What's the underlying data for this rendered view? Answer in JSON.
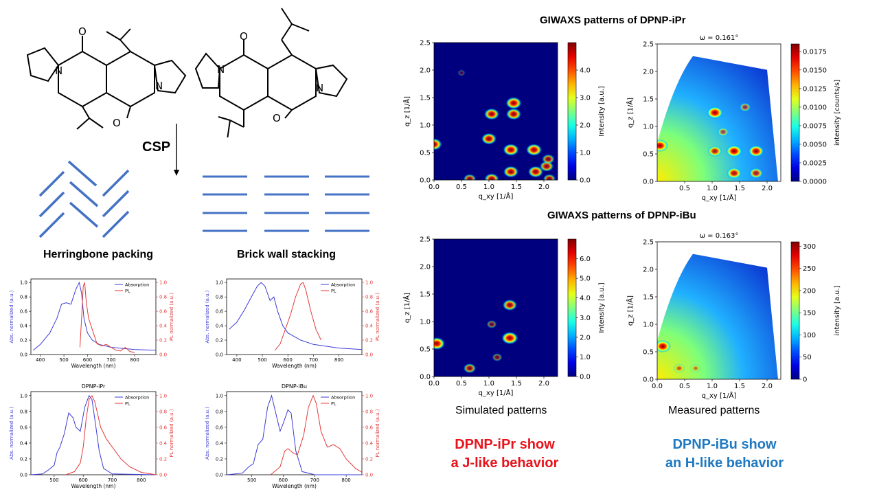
{
  "labels": {
    "csp": "CSP",
    "herringbone": "Herringbone packing",
    "brickwall": "Brick wall stacking",
    "giwaxs_ipr_title": "GIWAXS patterns of DPNP-iPr",
    "giwaxs_ibu_title": "GIWAXS patterns of DPNP-iBu",
    "simulated": "Simulated patterns",
    "measured": "Measured patterns",
    "ipr_conclusion_1": "DPNP-iPr show",
    "ipr_conclusion_2": "a J-like behavior",
    "ibu_conclusion_1": "DPNP-iBu show",
    "ibu_conclusion_2": "an H-like behavior",
    "atom_O": "O",
    "atom_N": "N"
  },
  "colors": {
    "ipr_conclusion": "#e8141b",
    "ibu_conclusion": "#1f79c2",
    "stacking_lines": "#4472c4",
    "absorption": "#3b3bd6",
    "pl": "#e23a3a"
  },
  "chart_data": [
    {
      "id": "spectrum-ipr-film",
      "type": "line",
      "title": "",
      "xlabel": "Wavelength (nm)",
      "ylabel": "Abs. normalized (a.u.)",
      "y2label": "PL normalized (a.u.)",
      "xlim": [
        360,
        890
      ],
      "ylim": [
        0,
        1.05
      ],
      "xticks": [
        400,
        500,
        600,
        700,
        800
      ],
      "yticks": [
        0.0,
        0.2,
        0.4,
        0.6,
        0.8,
        1.0
      ],
      "legend": [
        "Absorption",
        "PL"
      ],
      "legend_position": "top-right",
      "series": [
        {
          "name": "Absorption",
          "x": [
            370,
            400,
            440,
            470,
            490,
            510,
            530,
            550,
            565,
            575,
            585,
            600,
            620,
            650,
            700,
            800,
            890
          ],
          "y": [
            0.06,
            0.14,
            0.3,
            0.5,
            0.7,
            0.72,
            0.7,
            0.9,
            1.0,
            0.85,
            0.5,
            0.3,
            0.2,
            0.14,
            0.1,
            0.07,
            0.06
          ]
        },
        {
          "name": "PL",
          "x": [
            568,
            575,
            582,
            588,
            595,
            605,
            620,
            640,
            660,
            680,
            700,
            720,
            740,
            760,
            780,
            800
          ],
          "y": [
            0.1,
            0.5,
            0.95,
            1.0,
            0.72,
            0.5,
            0.35,
            0.15,
            0.12,
            0.14,
            0.1,
            0.06,
            0.05,
            0.1,
            0.04,
            0.03
          ]
        }
      ]
    },
    {
      "id": "spectrum-ibu-film",
      "type": "line",
      "title": "",
      "xlabel": "Wavelength (nm)",
      "ylabel": "Abs. normalized (a.u.)",
      "y2label": "PL normalized (a.u.)",
      "xlim": [
        360,
        890
      ],
      "ylim": [
        0,
        1.05
      ],
      "xticks": [
        400,
        500,
        600,
        700,
        800
      ],
      "yticks": [
        0.0,
        0.2,
        0.4,
        0.6,
        0.8,
        1.0
      ],
      "legend": [
        "Absorption",
        "PL"
      ],
      "legend_position": "top-right",
      "series": [
        {
          "name": "Absorption",
          "x": [
            370,
            400,
            430,
            460,
            480,
            495,
            510,
            530,
            545,
            560,
            580,
            600,
            650,
            700,
            800,
            890
          ],
          "y": [
            0.35,
            0.45,
            0.62,
            0.82,
            0.95,
            1.0,
            0.95,
            0.75,
            0.8,
            0.6,
            0.4,
            0.3,
            0.2,
            0.14,
            0.09,
            0.07
          ]
        },
        {
          "name": "PL",
          "x": [
            550,
            570,
            590,
            610,
            630,
            650,
            660,
            670,
            690,
            710,
            730
          ],
          "y": [
            0.06,
            0.15,
            0.35,
            0.55,
            0.8,
            0.98,
            1.0,
            0.9,
            0.6,
            0.35,
            0.2
          ]
        }
      ]
    },
    {
      "id": "spectrum-ipr-solution",
      "type": "line",
      "title": "DPNP-iPr",
      "xlabel": "Wavelength (nm)",
      "ylabel": "Abs. normalized (a.u.)",
      "y2label": "PL normalized (a.u.)",
      "xlim": [
        420,
        850
      ],
      "ylim": [
        0,
        1.05
      ],
      "xticks": [
        500,
        600,
        700,
        800
      ],
      "yticks": [
        0.0,
        0.2,
        0.4,
        0.6,
        0.8,
        1.0
      ],
      "legend": [
        "Absorption",
        "PL"
      ],
      "legend_position": "top-right",
      "series": [
        {
          "name": "Absorption",
          "x": [
            420,
            460,
            480,
            500,
            510,
            520,
            535,
            550,
            565,
            575,
            590,
            605,
            620,
            630,
            640,
            655,
            670,
            700,
            850
          ],
          "y": [
            0.0,
            0.01,
            0.06,
            0.12,
            0.28,
            0.35,
            0.52,
            0.78,
            0.72,
            0.6,
            0.55,
            0.85,
            1.0,
            0.95,
            0.7,
            0.3,
            0.08,
            0.01,
            0.0
          ]
        },
        {
          "name": "PL",
          "x": [
            540,
            570,
            590,
            600,
            610,
            620,
            630,
            640,
            660,
            680,
            700,
            730,
            760,
            800,
            850
          ],
          "y": [
            0.0,
            0.04,
            0.15,
            0.35,
            0.7,
            0.95,
            1.0,
            0.92,
            0.6,
            0.45,
            0.35,
            0.2,
            0.1,
            0.03,
            0.0
          ]
        }
      ]
    },
    {
      "id": "spectrum-ibu-solution",
      "type": "line",
      "title": "DPNP-iBu",
      "xlabel": "Wavelength (nm)",
      "ylabel": "Abs. normalized (a.u.)",
      "y2label": "PL normalized (a.u.)",
      "xlim": [
        420,
        850
      ],
      "ylim": [
        0,
        1.05
      ],
      "xticks": [
        500,
        600,
        700,
        800
      ],
      "yticks": [
        0.0,
        0.2,
        0.4,
        0.6,
        0.8,
        1.0
      ],
      "legend": [
        "Absorption",
        "PL"
      ],
      "legend_position": "top-right",
      "series": [
        {
          "name": "Absorption",
          "x": [
            420,
            470,
            490,
            505,
            520,
            535,
            550,
            563,
            575,
            590,
            600,
            615,
            625,
            640,
            660,
            700,
            850
          ],
          "y": [
            0.0,
            0.02,
            0.1,
            0.14,
            0.38,
            0.45,
            0.85,
            1.0,
            0.8,
            0.55,
            0.65,
            0.82,
            0.78,
            0.3,
            0.04,
            0.0,
            0.0
          ]
        },
        {
          "name": "PL",
          "x": [
            560,
            590,
            605,
            615,
            630,
            645,
            665,
            680,
            695,
            705,
            720,
            740,
            760,
            780,
            800,
            830,
            850
          ],
          "y": [
            0.0,
            0.1,
            0.3,
            0.33,
            0.28,
            0.25,
            0.5,
            0.85,
            1.0,
            0.9,
            0.55,
            0.35,
            0.38,
            0.33,
            0.2,
            0.08,
            0.03
          ]
        }
      ]
    },
    {
      "id": "giwaxs-ipr-simulated",
      "type": "heatmap",
      "title": "",
      "xlabel": "q_xy [1/Å]",
      "ylabel": "q_z [1/Å]",
      "colorbar_label": "Intensity [a.u.]",
      "xlim": [
        0,
        2.25
      ],
      "ylim": [
        0,
        2.5
      ],
      "xticks": [
        "0.0",
        "0.5",
        "1.0",
        "1.5",
        "2.0"
      ],
      "yticks": [
        "0.0",
        "0.5",
        "1.0",
        "1.5",
        "2.0",
        "2.5"
      ],
      "colorbar_ticks": [
        "0.0",
        "1.0",
        "2.0",
        "3.0",
        "4.0"
      ],
      "colorbar_max": 5.0,
      "peaks": [
        {
          "q": [
            0.0,
            0.65
          ],
          "i": 0.95
        },
        {
          "q": [
            1.0,
            0.75
          ],
          "i": 0.9
        },
        {
          "q": [
            1.05,
            1.2
          ],
          "i": 0.9
        },
        {
          "q": [
            1.45,
            1.4
          ],
          "i": 0.95
        },
        {
          "q": [
            1.45,
            1.2
          ],
          "i": 0.9
        },
        {
          "q": [
            1.4,
            0.55
          ],
          "i": 0.95
        },
        {
          "q": [
            1.82,
            0.55
          ],
          "i": 0.95
        },
        {
          "q": [
            1.4,
            0.15
          ],
          "i": 0.9
        },
        {
          "q": [
            1.85,
            0.15
          ],
          "i": 0.9
        },
        {
          "q": [
            2.05,
            0.25
          ],
          "i": 0.8
        },
        {
          "q": [
            2.08,
            0.38
          ],
          "i": 0.7
        },
        {
          "q": [
            1.05,
            0.02
          ],
          "i": 0.85
        },
        {
          "q": [
            0.65,
            0.02
          ],
          "i": 0.7
        },
        {
          "q": [
            0.5,
            1.95
          ],
          "i": 0.3
        },
        {
          "q": [
            2.1,
            0.02
          ],
          "i": 0.7
        }
      ]
    },
    {
      "id": "giwaxs-ipr-measured",
      "type": "heatmap",
      "title": "ω = 0.161°",
      "xlabel": "q_xy [1/Å]",
      "ylabel": "q_z [1/Å]",
      "colorbar_label": "intensity [counts/s]",
      "xlim": [
        0,
        2.25
      ],
      "ylim": [
        0,
        2.5
      ],
      "xticks": [
        "0.5",
        "1.0",
        "1.5",
        "2.0"
      ],
      "yticks": [
        "0.0",
        "0.5",
        "1.0",
        "1.5",
        "2.0",
        "2.5"
      ],
      "colorbar_ticks": [
        "0.0000",
        "0.0025",
        "0.0050",
        "0.0075",
        "0.0100",
        "0.0125",
        "0.0150",
        "0.0175"
      ],
      "colorbar_max": 0.0185,
      "peaks": [
        {
          "q": [
            0.05,
            0.65
          ],
          "i": 1.0
        },
        {
          "q": [
            1.05,
            1.25
          ],
          "i": 1.0
        },
        {
          "q": [
            1.05,
            0.55
          ],
          "i": 0.85
        },
        {
          "q": [
            1.4,
            0.55
          ],
          "i": 1.0
        },
        {
          "q": [
            1.8,
            0.55
          ],
          "i": 0.95
        },
        {
          "q": [
            1.4,
            0.15
          ],
          "i": 0.9
        },
        {
          "q": [
            1.8,
            0.15
          ],
          "i": 0.8
        },
        {
          "q": [
            1.6,
            1.35
          ],
          "i": 0.6
        },
        {
          "q": [
            1.2,
            0.9
          ],
          "i": 0.6
        }
      ]
    },
    {
      "id": "giwaxs-ibu-simulated",
      "type": "heatmap",
      "title": "",
      "xlabel": "q_xy [1/Å]",
      "ylabel": "q_z [1/Å]",
      "colorbar_label": "Intensity [a.u.]",
      "xlim": [
        0,
        2.25
      ],
      "ylim": [
        0,
        2.5
      ],
      "xticks": [
        "0.0",
        "0.5",
        "1.0",
        "1.5",
        "2.0"
      ],
      "yticks": [
        "0.0",
        "0.5",
        "1.0",
        "1.5",
        "2.0",
        "2.5"
      ],
      "colorbar_ticks": [
        "0.0",
        "1.0",
        "2.0",
        "3.0",
        "4.0",
        "5.0",
        "6.0"
      ],
      "colorbar_max": 7.0,
      "peaks": [
        {
          "q": [
            0.05,
            0.6
          ],
          "i": 1.0
        },
        {
          "q": [
            1.38,
            1.3
          ],
          "i": 0.85
        },
        {
          "q": [
            1.38,
            0.7
          ],
          "i": 1.0
        },
        {
          "q": [
            0.65,
            0.15
          ],
          "i": 0.7
        },
        {
          "q": [
            1.05,
            0.95
          ],
          "i": 0.5
        },
        {
          "q": [
            1.15,
            0.35
          ],
          "i": 0.5
        }
      ]
    },
    {
      "id": "giwaxs-ibu-measured",
      "type": "heatmap",
      "title": "ω = 0.163°",
      "xlabel": "q_xy [1/Å]",
      "ylabel": "q_z [1/Å]",
      "colorbar_label": "intensity [a.u.]",
      "xlim": [
        0,
        2.25
      ],
      "ylim": [
        0,
        2.5
      ],
      "xticks": [
        "0.0",
        "0.5",
        "1.0",
        "1.5",
        "2.0"
      ],
      "yticks": [
        "0.0",
        "0.5",
        "1.0",
        "1.5",
        "2.0",
        "2.5"
      ],
      "colorbar_ticks": [
        "0",
        "50",
        "100",
        "150",
        "200",
        "250",
        "300"
      ],
      "colorbar_max": 310,
      "peaks": [
        {
          "q": [
            0.1,
            0.6
          ],
          "i": 1.0
        },
        {
          "q": [
            0.4,
            0.2
          ],
          "i": 0.6
        },
        {
          "q": [
            0.7,
            0.2
          ],
          "i": 0.5
        }
      ]
    }
  ]
}
